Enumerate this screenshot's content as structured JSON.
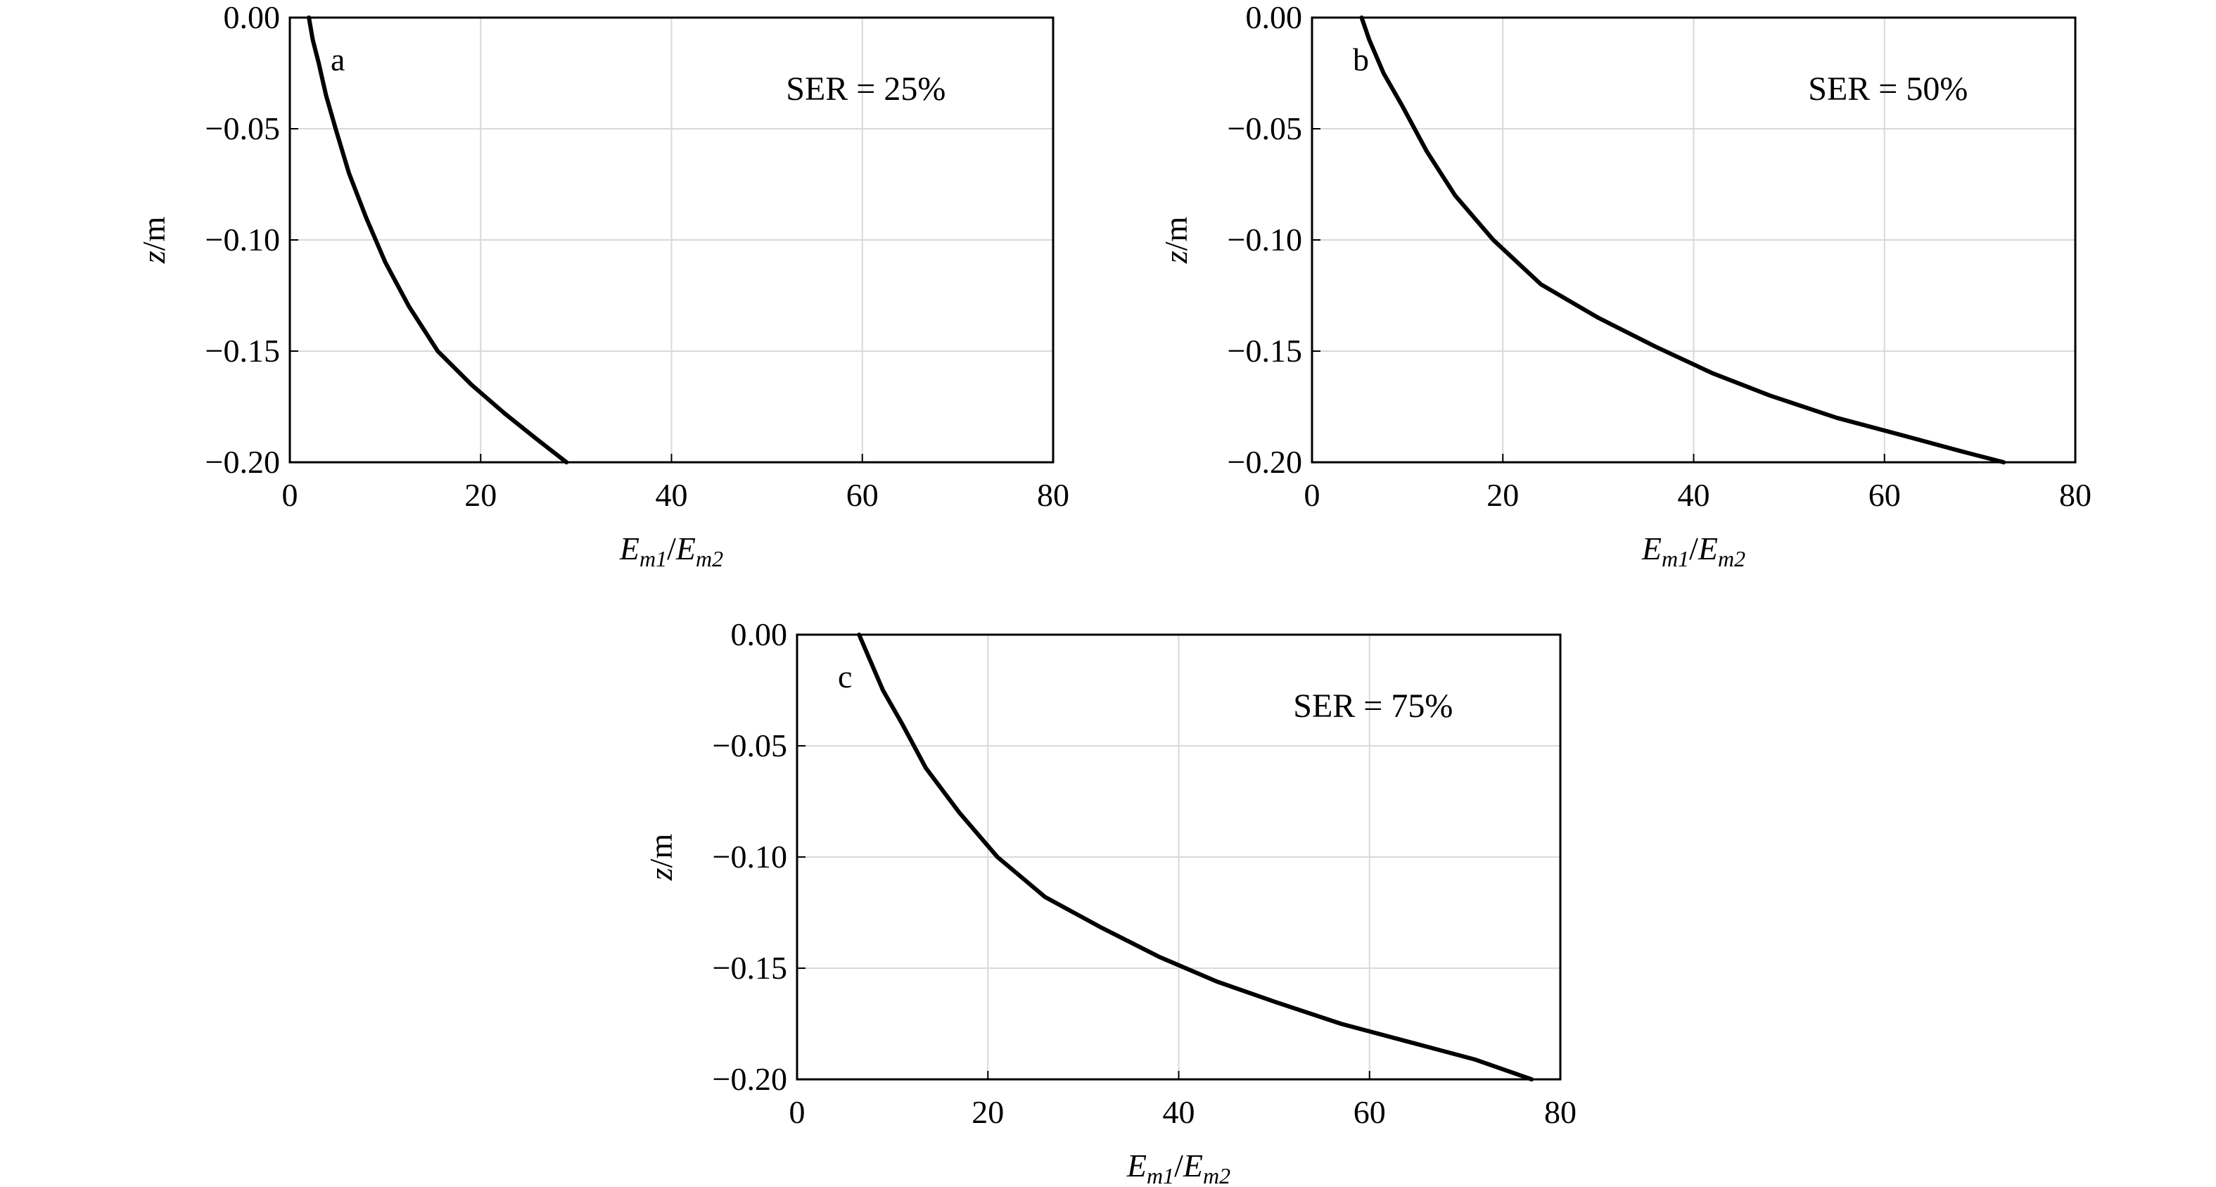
{
  "chart_data": [
    {
      "type": "line",
      "panel_label": "a",
      "annotation": "SER = 25%",
      "xlabel": {
        "main": "E",
        "sub1": "m1",
        "slash": "/",
        "main2": "E",
        "sub2": "m2"
      },
      "ylabel": {
        "italic": "z",
        "rest": "/m"
      },
      "xlim": [
        0,
        80
      ],
      "ylim": [
        -0.2,
        0.0
      ],
      "x_ticks": [
        "0",
        "20",
        "40",
        "60",
        "80"
      ],
      "y_ticks": [
        "0.00",
        "−0.05",
        "−0.10",
        "−0.15",
        "−0.20"
      ],
      "grid": true,
      "series": [
        {
          "x": [
            2.0,
            2.4,
            3.0,
            3.8,
            4.8,
            6.2,
            8.0,
            10.0,
            12.5,
            15.5,
            19.0,
            22.5,
            26.0,
            29.0
          ],
          "y": [
            0.0,
            -0.01,
            -0.02,
            -0.035,
            -0.05,
            -0.07,
            -0.09,
            -0.11,
            -0.13,
            -0.15,
            -0.165,
            -0.178,
            -0.19,
            -0.2
          ]
        }
      ]
    },
    {
      "type": "line",
      "panel_label": "b",
      "annotation": "SER = 50%",
      "xlabel": {
        "main": "E",
        "sub1": "m1",
        "slash": "/",
        "main2": "E",
        "sub2": "m2"
      },
      "ylabel": {
        "italic": "z",
        "rest": "/m"
      },
      "xlim": [
        0,
        80
      ],
      "ylim": [
        -0.2,
        0.0
      ],
      "x_ticks": [
        "0",
        "20",
        "40",
        "60",
        "80"
      ],
      "y_ticks": [
        "0.00",
        "−0.05",
        "−0.10",
        "−0.15",
        "−0.20"
      ],
      "grid": true,
      "series": [
        {
          "x": [
            5.2,
            6.0,
            7.5,
            9.5,
            12.0,
            15.0,
            19.0,
            24.0,
            30.0,
            36.0,
            42.0,
            48.0,
            55.0,
            62.0,
            68.0,
            72.5
          ],
          "y": [
            0.0,
            -0.01,
            -0.025,
            -0.04,
            -0.06,
            -0.08,
            -0.1,
            -0.12,
            -0.135,
            -0.148,
            -0.16,
            -0.17,
            -0.18,
            -0.188,
            -0.195,
            -0.2
          ]
        }
      ]
    },
    {
      "type": "line",
      "panel_label": "c",
      "annotation": "SER = 75%",
      "xlabel": {
        "main": "E",
        "sub1": "m1",
        "slash": "/",
        "main2": "E",
        "sub2": "m2"
      },
      "ylabel": {
        "italic": "z",
        "rest": "/m"
      },
      "xlim": [
        0,
        80
      ],
      "ylim": [
        -0.2,
        0.0
      ],
      "x_ticks": [
        "0",
        "20",
        "40",
        "60",
        "80"
      ],
      "y_ticks": [
        "0.00",
        "−0.05",
        "−0.10",
        "−0.15",
        "−0.20"
      ],
      "grid": true,
      "series": [
        {
          "x": [
            6.5,
            7.5,
            9.0,
            11.0,
            13.5,
            17.0,
            21.0,
            26.0,
            32.0,
            38.0,
            44.0,
            50.0,
            57.0,
            64.0,
            71.0,
            77.0
          ],
          "y": [
            0.0,
            -0.01,
            -0.025,
            -0.04,
            -0.06,
            -0.08,
            -0.1,
            -0.118,
            -0.132,
            -0.145,
            -0.156,
            -0.165,
            -0.175,
            -0.183,
            -0.191,
            -0.2
          ]
        }
      ]
    }
  ]
}
